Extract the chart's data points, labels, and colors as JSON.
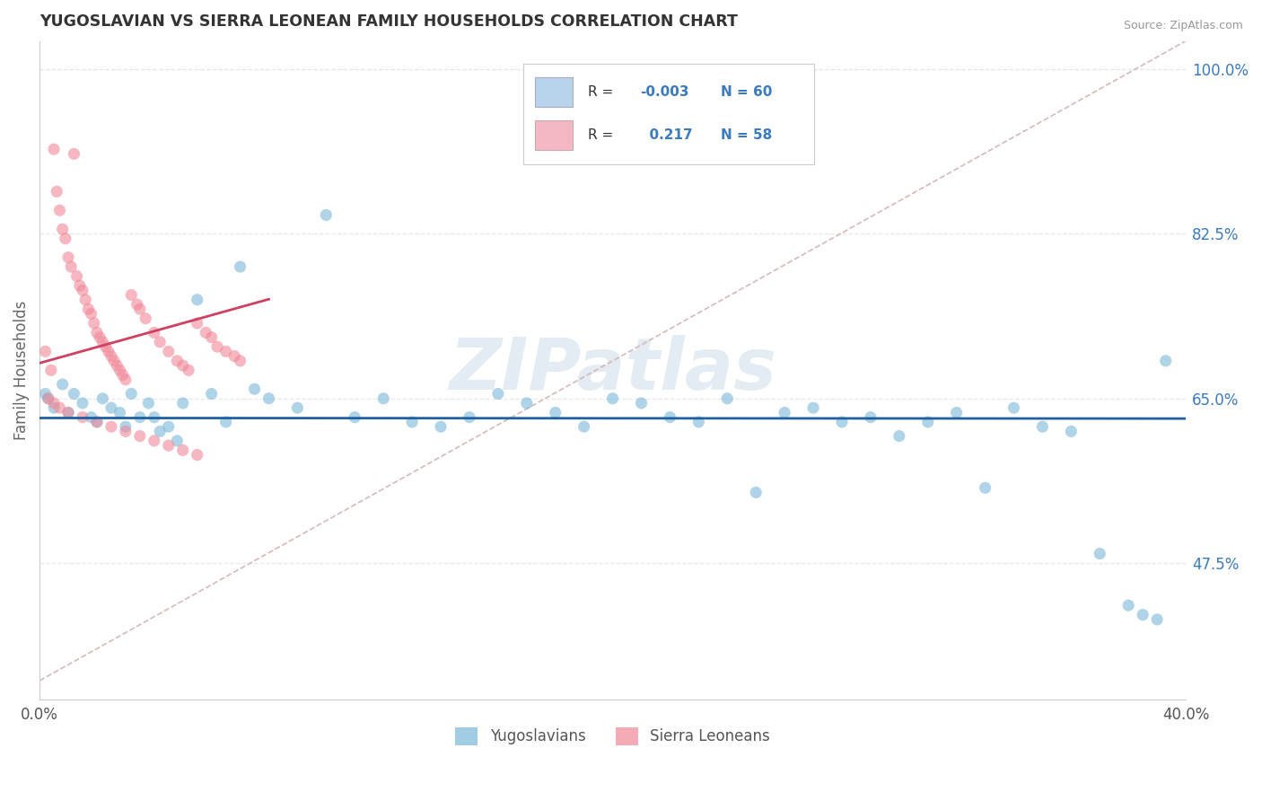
{
  "title": "YUGOSLAVIAN VS SIERRA LEONEAN FAMILY HOUSEHOLDS CORRELATION CHART",
  "source_text": "Source: ZipAtlas.com",
  "ylabel": "Family Households",
  "xlim": [
    0.0,
    40.0
  ],
  "ylim": [
    33.0,
    103.0
  ],
  "x_tick_labels": [
    "0.0%",
    "40.0%"
  ],
  "y_ticks_right": [
    47.5,
    65.0,
    82.5,
    100.0
  ],
  "y_tick_labels_right": [
    "47.5%",
    "65.0%",
    "82.5%",
    "100.0%"
  ],
  "blue_dot_color": "#7ab8d9",
  "pink_dot_color": "#f08898",
  "blue_legend_color": "#b8d4ea",
  "pink_legend_color": "#f4b8c4",
  "trend_line_blue_color": "#2060a0",
  "trend_line_pink_color": "#d04060",
  "diagonal_line_color": "#d8b8b8",
  "grid_color": "#e8e8e8",
  "R_blue": -0.003,
  "R_pink": 0.217,
  "N_blue": 60,
  "N_pink": 58,
  "watermark": "ZIPatlas",
  "blue_dots_x": [
    0.3,
    0.5,
    0.8,
    1.0,
    1.2,
    1.5,
    1.8,
    2.0,
    2.2,
    2.5,
    2.8,
    3.0,
    3.2,
    3.5,
    3.8,
    4.0,
    4.2,
    4.5,
    4.8,
    5.0,
    5.5,
    6.0,
    6.5,
    7.0,
    7.5,
    8.0,
    9.0,
    10.0,
    11.0,
    12.0,
    13.0,
    14.0,
    15.0,
    16.0,
    17.0,
    18.0,
    19.0,
    20.0,
    21.0,
    22.0,
    23.0,
    24.0,
    25.0,
    26.0,
    27.0,
    28.0,
    29.0,
    30.0,
    31.0,
    32.0,
    33.0,
    34.0,
    35.0,
    36.0,
    37.0,
    38.0,
    38.5,
    39.0,
    39.3,
    0.2
  ],
  "blue_dots_y": [
    65.0,
    64.0,
    66.5,
    63.5,
    65.5,
    64.5,
    63.0,
    62.5,
    65.0,
    64.0,
    63.5,
    62.0,
    65.5,
    63.0,
    64.5,
    63.0,
    61.5,
    62.0,
    60.5,
    64.5,
    75.5,
    65.5,
    62.5,
    79.0,
    66.0,
    65.0,
    64.0,
    84.5,
    63.0,
    65.0,
    62.5,
    62.0,
    63.0,
    65.5,
    64.5,
    63.5,
    62.0,
    65.0,
    64.5,
    63.0,
    62.5,
    65.0,
    55.0,
    63.5,
    64.0,
    62.5,
    63.0,
    61.0,
    62.5,
    63.5,
    55.5,
    64.0,
    62.0,
    61.5,
    48.5,
    43.0,
    42.0,
    41.5,
    69.0,
    65.5
  ],
  "pink_dots_x": [
    0.2,
    0.4,
    0.5,
    0.6,
    0.7,
    0.8,
    0.9,
    1.0,
    1.1,
    1.2,
    1.3,
    1.4,
    1.5,
    1.6,
    1.7,
    1.8,
    1.9,
    2.0,
    2.1,
    2.2,
    2.3,
    2.4,
    2.5,
    2.6,
    2.7,
    2.8,
    2.9,
    3.0,
    3.2,
    3.4,
    3.5,
    3.7,
    4.0,
    4.2,
    4.5,
    4.8,
    5.0,
    5.2,
    5.5,
    5.8,
    6.0,
    6.2,
    6.5,
    6.8,
    7.0,
    0.3,
    0.5,
    0.7,
    1.0,
    1.5,
    2.0,
    2.5,
    3.0,
    3.5,
    4.0,
    4.5,
    5.0,
    5.5
  ],
  "pink_dots_y": [
    70.0,
    68.0,
    91.5,
    87.0,
    85.0,
    83.0,
    82.0,
    80.0,
    79.0,
    91.0,
    78.0,
    77.0,
    76.5,
    75.5,
    74.5,
    74.0,
    73.0,
    72.0,
    71.5,
    71.0,
    70.5,
    70.0,
    69.5,
    69.0,
    68.5,
    68.0,
    67.5,
    67.0,
    76.0,
    75.0,
    74.5,
    73.5,
    72.0,
    71.0,
    70.0,
    69.0,
    68.5,
    68.0,
    73.0,
    72.0,
    71.5,
    70.5,
    70.0,
    69.5,
    69.0,
    65.0,
    64.5,
    64.0,
    63.5,
    63.0,
    62.5,
    62.0,
    61.5,
    61.0,
    60.5,
    60.0,
    59.5,
    59.0
  ]
}
